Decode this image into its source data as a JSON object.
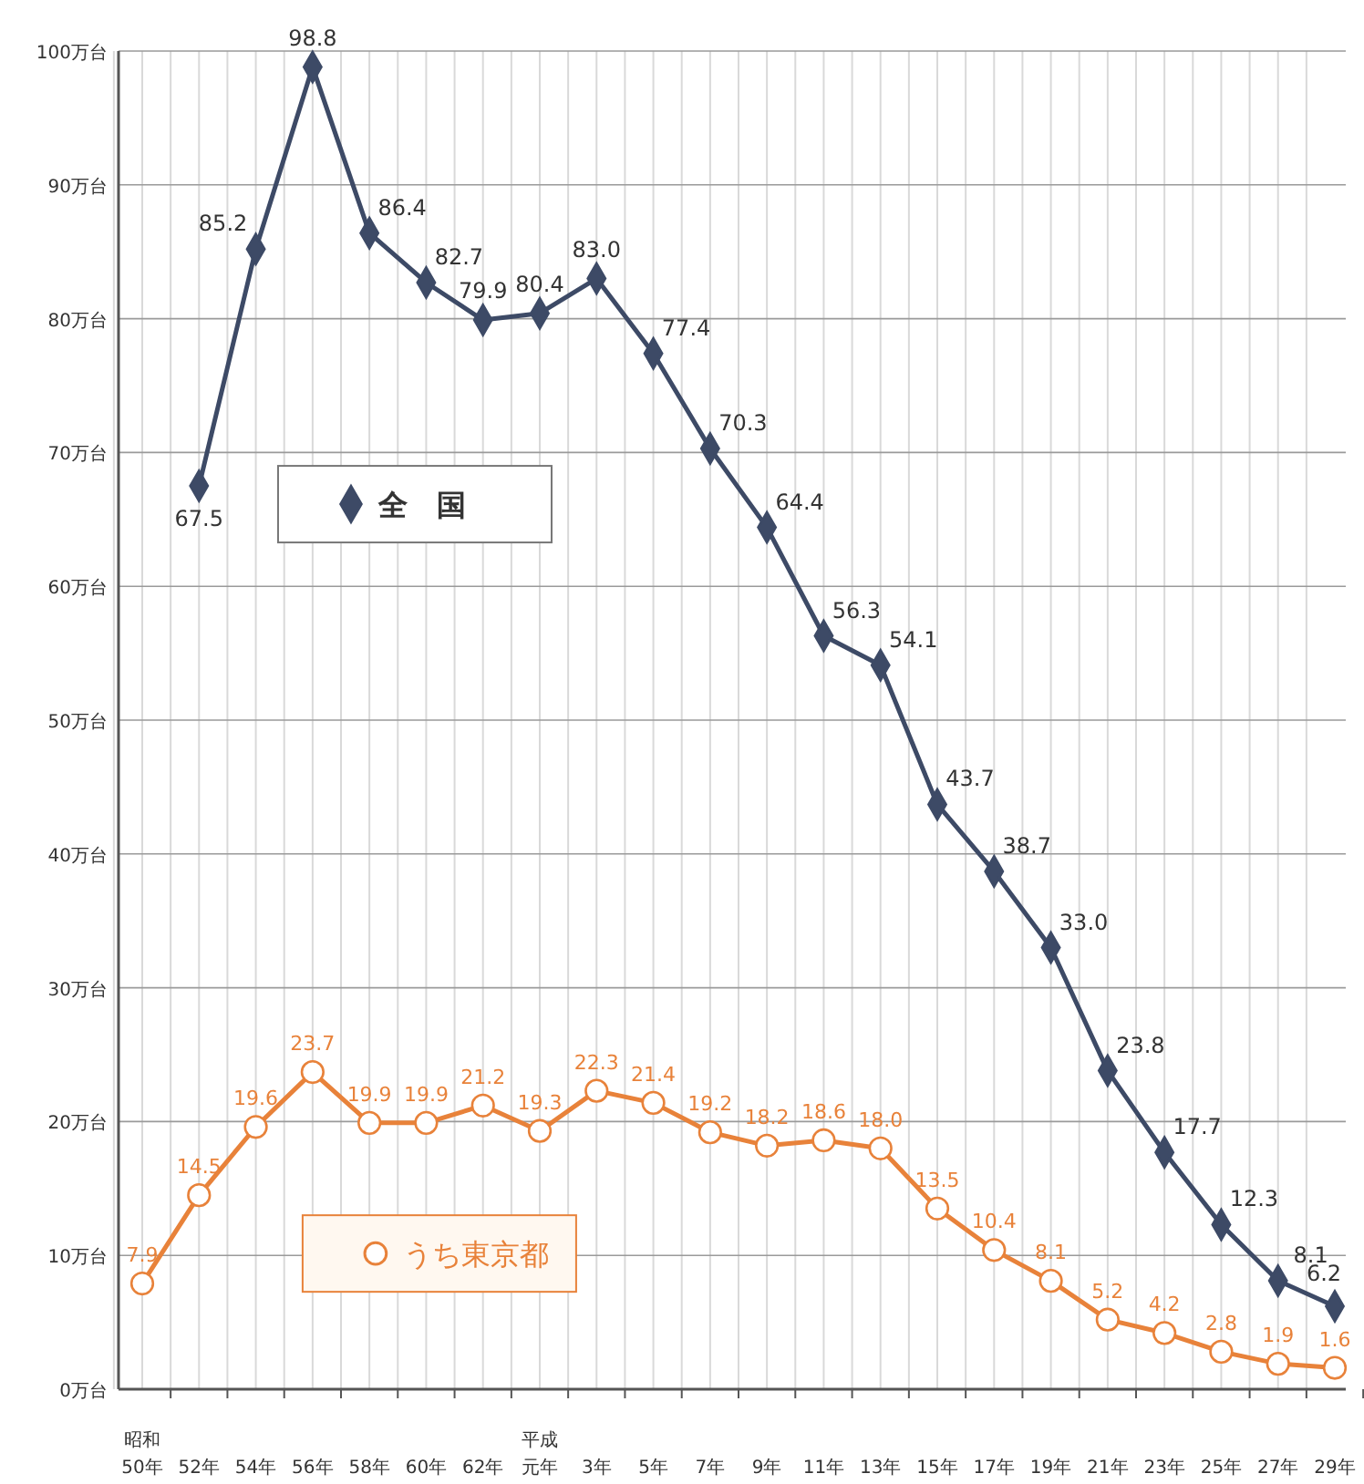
{
  "chart_data": {
    "type": "line",
    "categories": [
      "昭和50年",
      "52年",
      "54年",
      "56年",
      "58年",
      "60年",
      "62年",
      "平成元年",
      "3年",
      "5年",
      "7年",
      "9年",
      "11年",
      "13年",
      "15年",
      "17年",
      "19年",
      "21年",
      "23年",
      "25年",
      "27年",
      "29年"
    ],
    "series": [
      {
        "name": "全　国",
        "color": "#3d4a66",
        "marker": "diamond",
        "values": [
          null,
          67.5,
          85.2,
          98.8,
          86.4,
          82.7,
          79.9,
          80.4,
          83.0,
          77.4,
          70.3,
          64.4,
          56.3,
          54.1,
          43.7,
          38.7,
          33.0,
          23.8,
          17.7,
          12.3,
          8.1,
          6.2
        ],
        "value_labels": [
          null,
          "67.5",
          "85.2",
          "98.8",
          "86.4",
          "82.7",
          "79.9",
          "80.4",
          "83.0",
          "77.4",
          "70.3",
          "64.4",
          "56.3",
          "54.1",
          "43.7",
          "38.7",
          "33.0",
          "23.8",
          "17.7",
          "12.3",
          "8.1",
          "6.2"
        ]
      },
      {
        "name": "うち東京都",
        "color": "#e8823a",
        "marker": "circle",
        "values": [
          7.9,
          14.5,
          19.6,
          23.7,
          19.9,
          19.9,
          21.2,
          19.3,
          22.3,
          21.4,
          19.2,
          18.2,
          18.6,
          18.0,
          13.5,
          10.4,
          8.1,
          5.2,
          4.2,
          2.8,
          1.9,
          1.6
        ],
        "value_labels": [
          "7.9",
          "14.5",
          "19.6",
          "23.7",
          "19.9",
          "19.9",
          "21.2",
          "19.3",
          "22.3",
          "21.4",
          "19.2",
          "18.2",
          "18.6",
          "18.0",
          "13.5",
          "10.4",
          "8.1",
          "5.2",
          "4.2",
          "2.8",
          "1.9",
          "1.6"
        ]
      }
    ],
    "ylim": [
      0,
      100
    ],
    "yticks": [
      {
        "value": 0,
        "label": "0万台"
      },
      {
        "value": 10,
        "label": "10万台"
      },
      {
        "value": 20,
        "label": "20万台"
      },
      {
        "value": 30,
        "label": "30万台"
      },
      {
        "value": 40,
        "label": "40万台"
      },
      {
        "value": 50,
        "label": "50万台"
      },
      {
        "value": 60,
        "label": "60万台"
      },
      {
        "value": 70,
        "label": "70万台"
      },
      {
        "value": 80,
        "label": "80万台"
      },
      {
        "value": 90,
        "label": "90万台"
      },
      {
        "value": 100,
        "label": "100万台"
      }
    ],
    "grid": true,
    "legend": "left",
    "line_style": "solid"
  }
}
